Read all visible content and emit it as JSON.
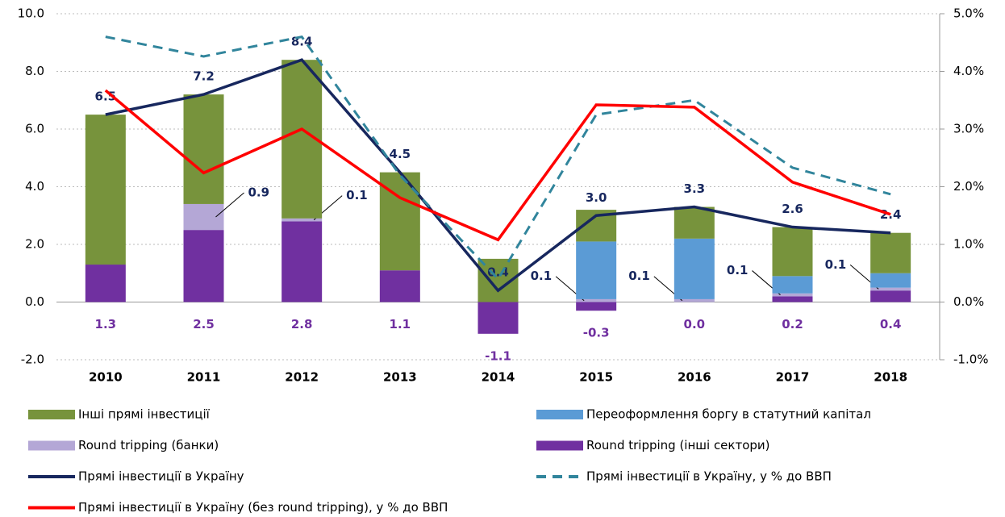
{
  "chart_data": {
    "type": "bar",
    "stacked": true,
    "categories": [
      "2010",
      "2011",
      "2012",
      "2013",
      "2014",
      "2015",
      "2016",
      "2017",
      "2018"
    ],
    "series": [
      {
        "name": "Round tripping (інші сектори)",
        "color": "#7030a0",
        "values": [
          1.3,
          2.5,
          2.8,
          1.1,
          -1.1,
          -0.3,
          0.0,
          0.2,
          0.4
        ],
        "value_labels": [
          "1.3",
          "2.5",
          "2.8",
          "1.1",
          "-1.1",
          "-0.3",
          "0.0",
          "0.2",
          "0.4"
        ]
      },
      {
        "name": "Round tripping (банки)",
        "color": "#b4a7d6",
        "values": [
          0,
          0.9,
          0.1,
          0,
          0,
          0.1,
          0.1,
          0.1,
          0.1
        ],
        "value_labels": [
          null,
          "0.9",
          "0.1",
          null,
          null,
          "0.1",
          "0.1",
          "0.1",
          "0.1"
        ]
      },
      {
        "name": "Переоформлення боргу в статутний капітал",
        "color": "#5b9bd5",
        "values": [
          0,
          0,
          0,
          0,
          0,
          2.0,
          2.1,
          0.6,
          0.5
        ]
      },
      {
        "name": "Інші прямі інвестиції",
        "color": "#77933c",
        "values": [
          5.2,
          3.8,
          5.5,
          3.4,
          1.5,
          1.1,
          1.1,
          1.7,
          1.4
        ]
      },
      {
        "name": "Прямі інвестиції в Україну",
        "color": "#17275e",
        "type": "line",
        "values": [
          6.5,
          7.2,
          8.4,
          4.5,
          0.4,
          3.0,
          3.3,
          2.6,
          2.4
        ],
        "value_labels": [
          "6.5",
          "7.2",
          "8.4",
          "4.5",
          "0.4",
          "3.0",
          "3.3",
          "2.6",
          "2.4"
        ]
      },
      {
        "name": "Прямі інвестиції в Україну, у % до ВВП",
        "color": "#31859c",
        "type": "line",
        "dashed": true,
        "axis": "y2",
        "values": [
          4.6,
          4.26,
          4.6,
          2.2,
          0.4,
          3.25,
          3.5,
          2.33,
          1.87
        ]
      },
      {
        "name": "Прямі інвестиції в Україну (без round tripping), у % до ВВП",
        "color": "#ff0000",
        "type": "line",
        "axis": "y2",
        "values": [
          3.67,
          2.24,
          3.0,
          1.81,
          1.08,
          3.42,
          3.38,
          2.08,
          1.52
        ]
      }
    ],
    "ylim": [
      -2,
      10
    ],
    "yticks": [
      {
        "value": -2,
        "label": "-2.0"
      },
      {
        "value": 0,
        "label": "0.0"
      },
      {
        "value": 2,
        "label": "2.0"
      },
      {
        "value": 4,
        "label": "4.0"
      },
      {
        "value": 6,
        "label": "6.0"
      },
      {
        "value": 8,
        "label": "8.0"
      },
      {
        "value": 10,
        "label": "10.0"
      }
    ],
    "y2lim": [
      -1,
      5
    ],
    "y2ticks": [
      {
        "value": -1,
        "label": "-1.0%"
      },
      {
        "value": 0,
        "label": "0.0%"
      },
      {
        "value": 1,
        "label": "1.0%"
      },
      {
        "value": 2,
        "label": "2.0%"
      },
      {
        "value": 3,
        "label": "3.0%"
      },
      {
        "value": 4,
        "label": "4.0%"
      },
      {
        "value": 5,
        "label": "5.0%"
      }
    ],
    "grid": true
  }
}
